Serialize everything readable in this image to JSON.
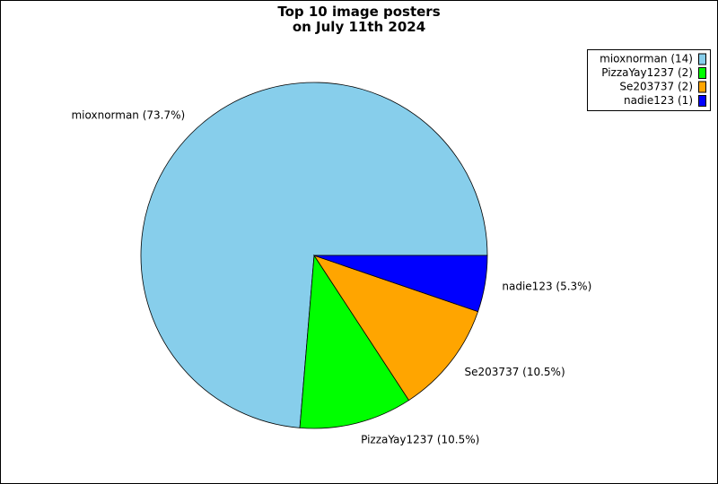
{
  "chart_data": {
    "type": "pie",
    "title": "Top 10 image posters\non July 11th 2024",
    "categories": [
      "mioxnorman",
      "PizzaYay1237",
      "Se203737",
      "nadie123"
    ],
    "values": [
      14,
      2,
      2,
      1
    ],
    "value_labels": [
      "mioxnorman (73.7%)",
      "PizzaYay1237 (10.5%)",
      "Se203737 (10.5%)",
      "nadie123 (5.3%)"
    ],
    "legend_labels": [
      "mioxnorman (14)",
      "PizzaYay1237 (2)",
      "Se203737 (2)",
      "nadie123 (1)"
    ],
    "colors": [
      "#87ceeb",
      "#00ff00",
      "#ffa500",
      "#0000ff"
    ],
    "legend": "upper right"
  }
}
